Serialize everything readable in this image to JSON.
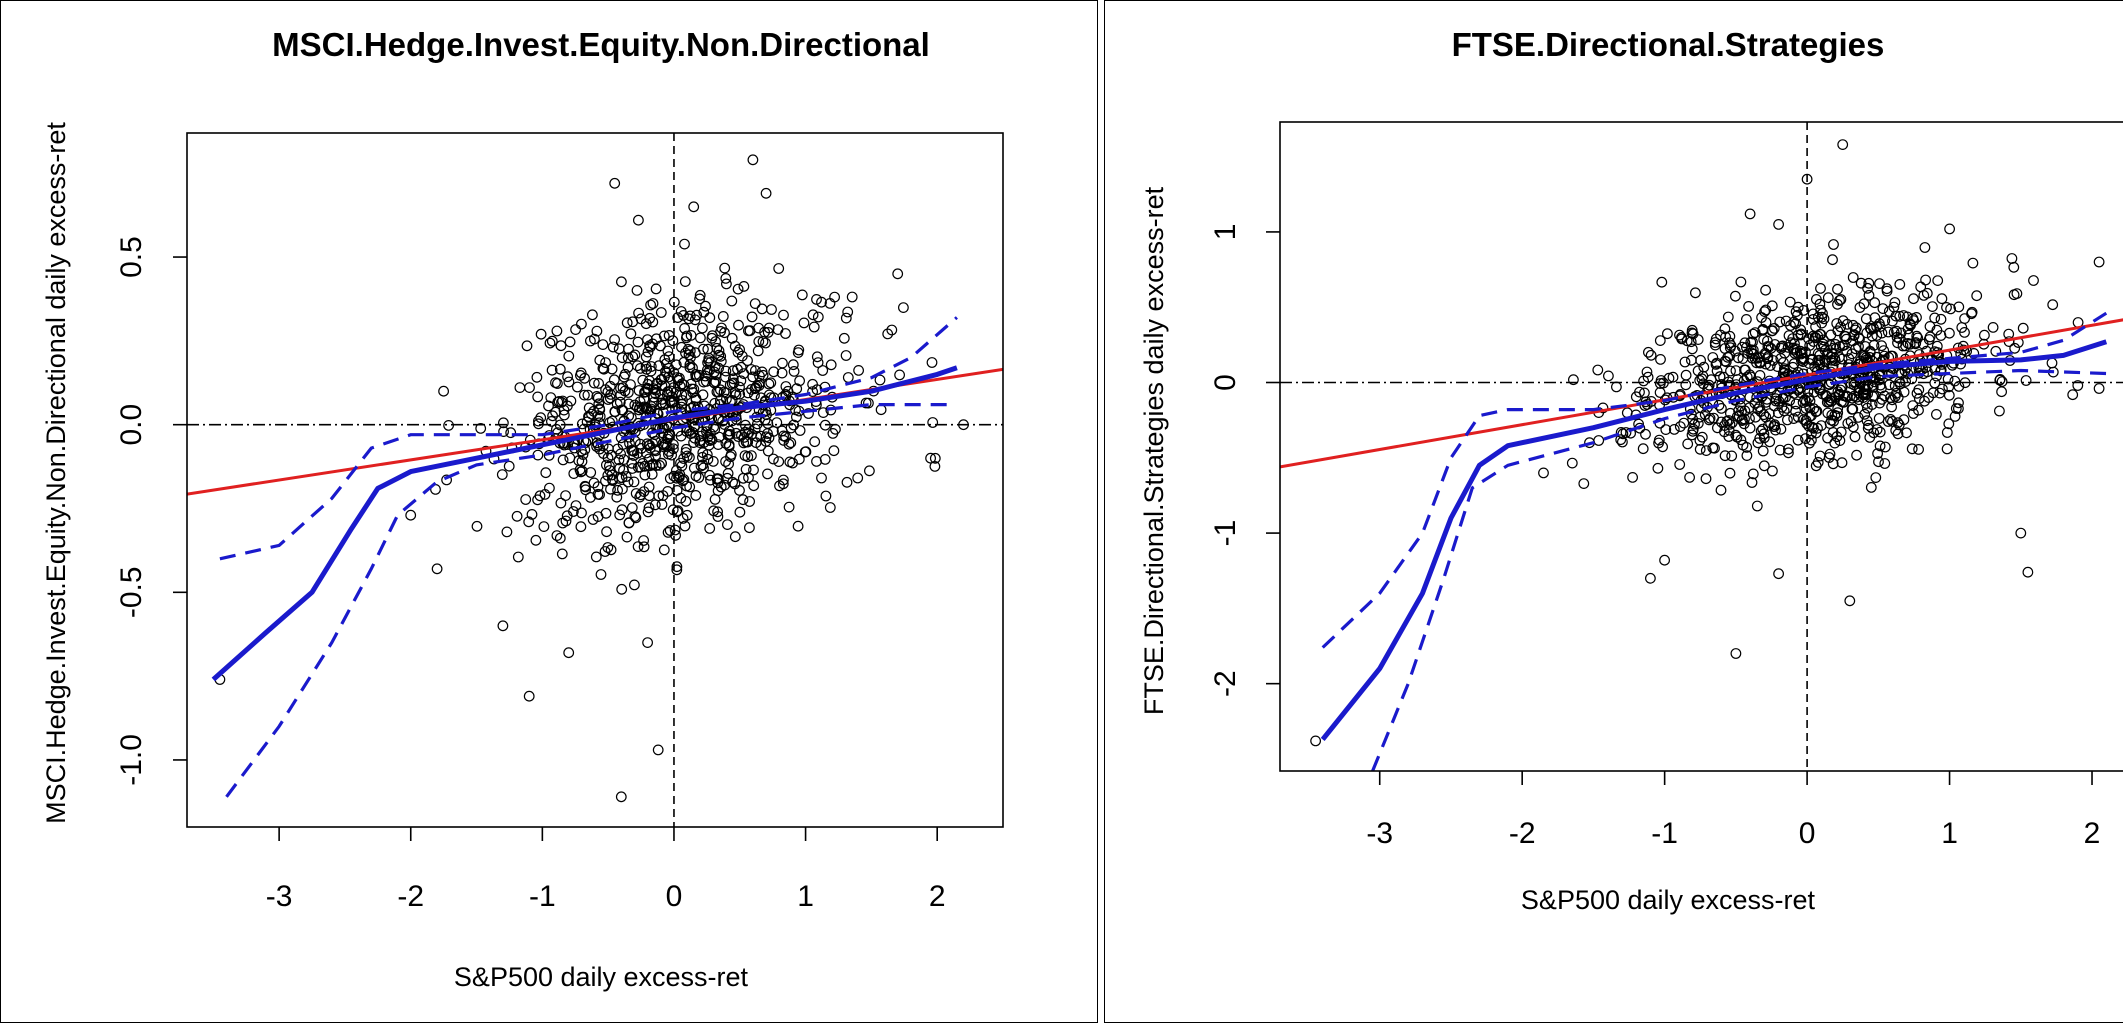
{
  "colors": {
    "ols": "#e02020",
    "robust": "#1a1acc",
    "points": "#000000"
  },
  "chart_data": [
    {
      "type": "scatter",
      "title": "MSCI.Hedge.Invest.Equity.Non.Directional",
      "xlabel": "S&P500 daily excess-ret",
      "ylabel": "MSCI.Hedge.Invest.Equity.Non.Directional  daily excess-ret",
      "xlim": [
        -3.7,
        2.5
      ],
      "ylim": [
        -1.2,
        0.87
      ],
      "xticks": [
        "-3",
        "-2",
        "-1",
        "0",
        "1",
        "2"
      ],
      "xtick_values": [
        -3,
        -2,
        -1,
        0,
        1,
        2
      ],
      "yticks": [
        "-1.0",
        "-0.5",
        "0.0",
        "0.5"
      ],
      "ytick_values": [
        -1.0,
        -0.5,
        0.0,
        0.5
      ],
      "ols_line": {
        "intercept": 0.015,
        "slope": 0.06
      },
      "robust_fit": [
        [
          -3.5,
          -0.76
        ],
        [
          -3.1,
          -0.62
        ],
        [
          -2.75,
          -0.5
        ],
        [
          -2.45,
          -0.31
        ],
        [
          -2.25,
          -0.19
        ],
        [
          -2.0,
          -0.14
        ],
        [
          -1.5,
          -0.1
        ],
        [
          -1.0,
          -0.06
        ],
        [
          -0.5,
          -0.02
        ],
        [
          0,
          0.02
        ],
        [
          0.5,
          0.05
        ],
        [
          1.0,
          0.07
        ],
        [
          1.5,
          0.1
        ],
        [
          2.0,
          0.15
        ],
        [
          2.15,
          0.17
        ]
      ],
      "band_upper": [
        [
          -3.45,
          -0.4
        ],
        [
          -3.0,
          -0.36
        ],
        [
          -2.6,
          -0.22
        ],
        [
          -2.3,
          -0.07
        ],
        [
          -2.0,
          -0.03
        ],
        [
          -1.5,
          -0.03
        ],
        [
          -1.0,
          -0.03
        ],
        [
          -0.5,
          0.0
        ],
        [
          0,
          0.04
        ],
        [
          0.5,
          0.06
        ],
        [
          1.0,
          0.09
        ],
        [
          1.5,
          0.14
        ],
        [
          1.8,
          0.2
        ],
        [
          2.15,
          0.32
        ]
      ],
      "band_lower": [
        [
          -3.4,
          -1.11
        ],
        [
          -3.0,
          -0.9
        ],
        [
          -2.6,
          -0.65
        ],
        [
          -2.3,
          -0.43
        ],
        [
          -2.1,
          -0.27
        ],
        [
          -1.8,
          -0.17
        ],
        [
          -1.5,
          -0.12
        ],
        [
          -1.0,
          -0.09
        ],
        [
          -0.5,
          -0.05
        ],
        [
          0,
          -0.01
        ],
        [
          0.5,
          0.02
        ],
        [
          1.0,
          0.04
        ],
        [
          1.5,
          0.06
        ],
        [
          2.1,
          0.06
        ]
      ],
      "points_seed": 7,
      "points_n": 900,
      "points_mean_x": 0.05,
      "points_sd_x": 0.62,
      "points_intercept": 0.015,
      "points_slope": 0.06,
      "points_sd_noise": 0.17,
      "extra_points": [
        [
          -3.45,
          -0.76
        ],
        [
          -2.0,
          -0.27
        ],
        [
          -1.8,
          -0.43
        ],
        [
          -1.3,
          -0.6
        ],
        [
          -1.1,
          -0.81
        ],
        [
          -0.8,
          -0.68
        ],
        [
          -0.4,
          -1.11
        ],
        [
          -0.12,
          -0.97
        ],
        [
          -0.45,
          0.72
        ],
        [
          0.6,
          0.79
        ],
        [
          0.7,
          0.69
        ],
        [
          0.15,
          0.65
        ],
        [
          -0.27,
          0.61
        ],
        [
          2.2,
          0.0
        ],
        [
          1.95,
          -0.1
        ],
        [
          1.7,
          0.45
        ],
        [
          -1.75,
          0.1
        ],
        [
          -0.2,
          -0.65
        ]
      ]
    },
    {
      "type": "scatter",
      "title": "FTSE.Directional.Strategies",
      "xlabel": "S&P500 daily excess-ret",
      "ylabel": "FTSE.Directional.Strategies  daily excess-ret",
      "xlim": [
        -3.7,
        2.4
      ],
      "ylim": [
        -2.58,
        1.73
      ],
      "xticks": [
        "-3",
        "-2",
        "-1",
        "0",
        "1",
        "2"
      ],
      "xtick_values": [
        -3,
        -2,
        -1,
        0,
        1,
        2
      ],
      "yticks": [
        "-2",
        "-1",
        "0",
        "1"
      ],
      "ytick_values": [
        -2,
        -1,
        0,
        1
      ],
      "ols_line": {
        "intercept": 0.05,
        "slope": 0.165
      },
      "robust_fit": [
        [
          -3.4,
          -2.37
        ],
        [
          -3.0,
          -1.9
        ],
        [
          -2.7,
          -1.4
        ],
        [
          -2.5,
          -0.9
        ],
        [
          -2.3,
          -0.55
        ],
        [
          -2.1,
          -0.42
        ],
        [
          -1.5,
          -0.3
        ],
        [
          -1.0,
          -0.18
        ],
        [
          -0.5,
          -0.07
        ],
        [
          0,
          0.02
        ],
        [
          0.5,
          0.1
        ],
        [
          1.0,
          0.14
        ],
        [
          1.5,
          0.15
        ],
        [
          1.8,
          0.18
        ],
        [
          2.1,
          0.27
        ]
      ],
      "band_upper": [
        [
          -3.4,
          -1.76
        ],
        [
          -3.0,
          -1.4
        ],
        [
          -2.7,
          -1.0
        ],
        [
          -2.5,
          -0.5
        ],
        [
          -2.3,
          -0.22
        ],
        [
          -2.1,
          -0.18
        ],
        [
          -1.5,
          -0.18
        ],
        [
          -1.0,
          -0.12
        ],
        [
          -0.5,
          -0.02
        ],
        [
          0,
          0.06
        ],
        [
          0.5,
          0.12
        ],
        [
          1.0,
          0.16
        ],
        [
          1.5,
          0.2
        ],
        [
          1.8,
          0.28
        ],
        [
          2.1,
          0.46
        ]
      ],
      "band_lower": [
        [
          -3.05,
          -2.58
        ],
        [
          -2.8,
          -2.0
        ],
        [
          -2.55,
          -1.3
        ],
        [
          -2.35,
          -0.7
        ],
        [
          -2.1,
          -0.55
        ],
        [
          -1.5,
          -0.4
        ],
        [
          -1.0,
          -0.24
        ],
        [
          -0.5,
          -0.12
        ],
        [
          0,
          -0.03
        ],
        [
          0.5,
          0.04
        ],
        [
          1.0,
          0.06
        ],
        [
          1.5,
          0.08
        ],
        [
          2.1,
          0.06
        ]
      ],
      "points_seed": 11,
      "points_n": 900,
      "points_mean_x": 0.05,
      "points_sd_x": 0.6,
      "points_intercept": 0.05,
      "points_slope": 0.165,
      "points_sd_noise": 0.27,
      "extra_points": [
        [
          -3.45,
          -2.38
        ],
        [
          -1.85,
          -0.6
        ],
        [
          -1.1,
          -1.3
        ],
        [
          -1.0,
          -1.18
        ],
        [
          -0.5,
          -1.8
        ],
        [
          -0.2,
          -1.27
        ],
        [
          0.3,
          -1.45
        ],
        [
          0.25,
          1.58
        ],
        [
          -0.4,
          1.12
        ],
        [
          -0.2,
          1.05
        ],
        [
          1.5,
          -1.0
        ],
        [
          1.55,
          -1.26
        ],
        [
          2.05,
          0.8
        ],
        [
          1.9,
          -0.02
        ],
        [
          0.0,
          1.35
        ],
        [
          1.0,
          1.02
        ]
      ]
    }
  ]
}
